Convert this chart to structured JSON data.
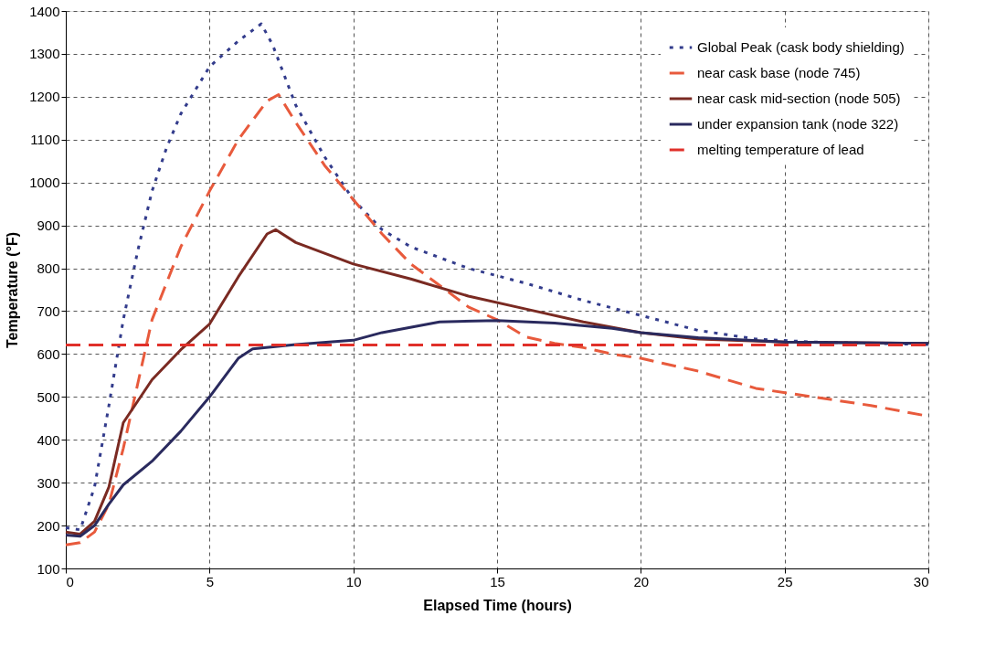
{
  "chart_data": {
    "type": "line",
    "xlabel": "Elapsed Time (hours)",
    "ylabel": "Temperature (°F)",
    "xlim": [
      0,
      30
    ],
    "xticks": [
      0,
      5,
      10,
      15,
      20,
      25,
      30
    ],
    "ylim": [
      100,
      1400
    ],
    "yticks": [
      100,
      200,
      300,
      400,
      500,
      600,
      700,
      800,
      900,
      1000,
      1100,
      1200,
      1300,
      1400
    ],
    "grid": true,
    "legend": "top right",
    "marker": "none",
    "series": [
      {
        "name": "Global Peak (cask body shielding)",
        "color": "#333c8c",
        "line_style": "dotted",
        "x": [
          0,
          0.5,
          1,
          1.5,
          2,
          2.5,
          3,
          3.5,
          4,
          5,
          6,
          6.8,
          7.2,
          8,
          9,
          10,
          11,
          12,
          14,
          16,
          18,
          20,
          22,
          24,
          26,
          30
        ],
        "values": [
          195,
          190,
          290,
          480,
          680,
          840,
          980,
          1080,
          1160,
          1270,
          1330,
          1370,
          1320,
          1180,
          1060,
          960,
          890,
          850,
          800,
          765,
          725,
          690,
          655,
          635,
          628,
          622
        ]
      },
      {
        "name": "near cask base (node 745)",
        "color": "#e85a3c",
        "line_style": "dashed",
        "x": [
          0,
          0.5,
          1,
          1.5,
          2,
          2.5,
          3,
          4,
          5,
          6,
          7,
          7.4,
          8,
          9,
          10,
          11,
          12,
          13,
          14,
          15,
          16,
          17,
          18,
          19,
          20,
          22,
          24,
          26,
          28,
          30
        ],
        "values": [
          155,
          160,
          185,
          250,
          380,
          530,
          680,
          850,
          980,
          1100,
          1190,
          1205,
          1140,
          1040,
          960,
          880,
          810,
          760,
          710,
          680,
          640,
          625,
          615,
          600,
          590,
          560,
          520,
          500,
          480,
          455
        ]
      },
      {
        "name": "near cask mid-section (node 505)",
        "color": "#7a2a22",
        "line_style": "solid",
        "x": [
          0,
          0.5,
          1,
          1.5,
          2,
          2.5,
          3,
          4,
          5,
          6,
          7,
          7.3,
          8,
          10,
          12,
          14,
          16,
          18,
          20,
          22,
          25,
          30
        ],
        "values": [
          185,
          180,
          210,
          290,
          440,
          490,
          540,
          610,
          670,
          780,
          880,
          890,
          860,
          810,
          775,
          735,
          705,
          675,
          650,
          635,
          628,
          625
        ]
      },
      {
        "name": "under expansion tank (node 322)",
        "color": "#2a2a5e",
        "line_style": "solid",
        "x": [
          0,
          0.5,
          1,
          1.5,
          2,
          3,
          4,
          5,
          6,
          6.5,
          8,
          10,
          11,
          13,
          15,
          17,
          19,
          20,
          22,
          25,
          30
        ],
        "values": [
          178,
          175,
          200,
          250,
          295,
          350,
          420,
          500,
          590,
          612,
          622,
          632,
          650,
          675,
          678,
          672,
          660,
          650,
          638,
          628,
          625
        ]
      },
      {
        "name": "melting temperature of lead",
        "color": "#e0302a",
        "line_style": "dashed",
        "x": [
          0,
          30
        ],
        "values": [
          621,
          621
        ]
      }
    ]
  }
}
